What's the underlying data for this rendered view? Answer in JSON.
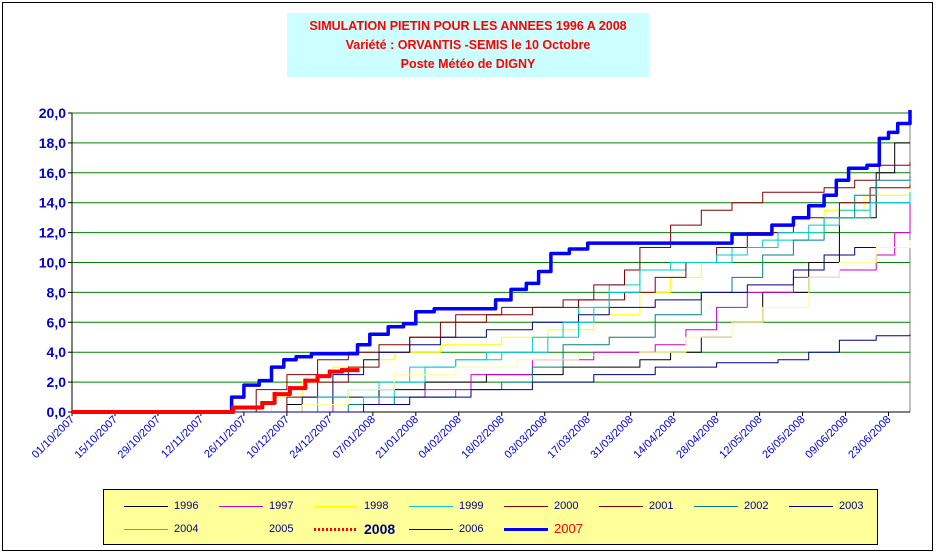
{
  "title_lines": [
    "SIMULATION PIETIN POUR LES ANNEES 1996 A 2008",
    "Variété : ORVANTIS   -SEMIS le 10 Octobre",
    "Poste Météo de DIGNY"
  ],
  "chart_data": {
    "type": "line",
    "title": "SIMULATION PIETIN POUR LES ANNEES 1996 A 2008",
    "ylim": [
      0,
      20
    ],
    "yticks": [
      "0,0",
      "2,0",
      "4,0",
      "6,0",
      "8,0",
      "10,0",
      "12,0",
      "14,0",
      "16,0",
      "18,0",
      "20,0"
    ],
    "xticks": [
      "01/10/2007",
      "15/10/2007",
      "29/10/2007",
      "12/11/2007",
      "26/11/2007",
      "10/12/2007",
      "24/12/2007",
      "07/01/2008",
      "21/01/2008",
      "04/02/2008",
      "18/02/2008",
      "03/03/2008",
      "17/03/2008",
      "31/03/2008",
      "14/04/2008",
      "28/04/2008",
      "12/05/2008",
      "26/05/2008",
      "09/06/2008",
      "23/06/2008"
    ],
    "x_day_start": 0,
    "x_day_end": 273,
    "grid": "horizontal",
    "legend_position": "bottom",
    "series": [
      {
        "name": "1996",
        "color": "#000000",
        "width": 1,
        "points": [
          [
            0,
            0
          ],
          [
            60,
            0
          ],
          [
            70,
            0.5
          ],
          [
            85,
            1
          ],
          [
            100,
            1.5
          ],
          [
            115,
            2
          ],
          [
            135,
            2.5
          ],
          [
            160,
            3
          ],
          [
            185,
            3.5
          ],
          [
            195,
            4
          ],
          [
            205,
            5
          ],
          [
            215,
            6
          ],
          [
            225,
            8
          ],
          [
            240,
            10
          ],
          [
            250,
            13
          ],
          [
            262,
            16
          ],
          [
            268,
            18
          ],
          [
            273,
            18
          ]
        ]
      },
      {
        "name": "1997",
        "color": "#cc00cc",
        "width": 1,
        "points": [
          [
            0,
            0
          ],
          [
            70,
            0
          ],
          [
            85,
            0.5
          ],
          [
            100,
            1
          ],
          [
            115,
            1.5
          ],
          [
            130,
            2.5
          ],
          [
            150,
            3.5
          ],
          [
            170,
            4
          ],
          [
            190,
            4.5
          ],
          [
            200,
            5.5
          ],
          [
            210,
            7
          ],
          [
            220,
            8
          ],
          [
            235,
            9
          ],
          [
            250,
            9.5
          ],
          [
            262,
            10.5
          ],
          [
            268,
            12
          ],
          [
            273,
            14
          ]
        ]
      },
      {
        "name": "1998",
        "color": "#ffff00",
        "width": 1,
        "points": [
          [
            0,
            0
          ],
          [
            55,
            0
          ],
          [
            65,
            1
          ],
          [
            75,
            2
          ],
          [
            85,
            3
          ],
          [
            95,
            3.5
          ],
          [
            105,
            4
          ],
          [
            120,
            4.5
          ],
          [
            140,
            5
          ],
          [
            155,
            5.5
          ],
          [
            170,
            6.5
          ],
          [
            185,
            8
          ],
          [
            195,
            9
          ],
          [
            205,
            10
          ],
          [
            215,
            11
          ],
          [
            230,
            12
          ],
          [
            245,
            13.5
          ],
          [
            258,
            14.5
          ],
          [
            273,
            15.2
          ]
        ]
      },
      {
        "name": "1999",
        "color": "#00cccc",
        "width": 1,
        "points": [
          [
            0,
            0
          ],
          [
            70,
            0
          ],
          [
            80,
            0.5
          ],
          [
            95,
            1
          ],
          [
            105,
            2
          ],
          [
            115,
            3
          ],
          [
            125,
            3.5
          ],
          [
            140,
            4
          ],
          [
            155,
            5
          ],
          [
            165,
            7
          ],
          [
            175,
            8.5
          ],
          [
            185,
            9.5
          ],
          [
            200,
            10
          ],
          [
            215,
            11
          ],
          [
            225,
            11.5
          ],
          [
            240,
            12.5
          ],
          [
            250,
            13.5
          ],
          [
            260,
            14
          ],
          [
            273,
            14.7
          ]
        ]
      },
      {
        "name": "2000",
        "color": "#800000",
        "width": 1,
        "points": [
          [
            0,
            0
          ],
          [
            60,
            0
          ],
          [
            70,
            1
          ],
          [
            80,
            2
          ],
          [
            90,
            3
          ],
          [
            100,
            4
          ],
          [
            110,
            5
          ],
          [
            120,
            6
          ],
          [
            135,
            6.5
          ],
          [
            150,
            7
          ],
          [
            165,
            7.5
          ],
          [
            180,
            8
          ],
          [
            190,
            9
          ],
          [
            200,
            10
          ],
          [
            210,
            11
          ],
          [
            220,
            12
          ],
          [
            235,
            13
          ],
          [
            250,
            14
          ],
          [
            260,
            15
          ],
          [
            273,
            15.2
          ]
        ]
      },
      {
        "name": "2001",
        "color": "#800000",
        "width": 1,
        "points": [
          [
            0,
            0
          ],
          [
            50,
            0
          ],
          [
            60,
            1.5
          ],
          [
            70,
            2.5
          ],
          [
            80,
            3.5
          ],
          [
            90,
            4
          ],
          [
            100,
            4.5
          ],
          [
            110,
            5
          ],
          [
            125,
            6.5
          ],
          [
            140,
            7
          ],
          [
            160,
            7.5
          ],
          [
            170,
            8.5
          ],
          [
            180,
            9.5
          ],
          [
            185,
            11
          ],
          [
            195,
            12.5
          ],
          [
            205,
            13.5
          ],
          [
            215,
            14
          ],
          [
            225,
            14.7
          ],
          [
            245,
            15
          ],
          [
            255,
            15.5
          ],
          [
            263,
            16.5
          ],
          [
            273,
            16.7
          ]
        ]
      },
      {
        "name": "2002",
        "color": "#008080",
        "width": 1,
        "points": [
          [
            0,
            0
          ],
          [
            75,
            0
          ],
          [
            90,
            0.5
          ],
          [
            105,
            1
          ],
          [
            125,
            1.5
          ],
          [
            140,
            2
          ],
          [
            150,
            3
          ],
          [
            160,
            4.5
          ],
          [
            175,
            5
          ],
          [
            190,
            6.5
          ],
          [
            205,
            8
          ],
          [
            215,
            9
          ],
          [
            225,
            10.5
          ],
          [
            235,
            11.5
          ],
          [
            245,
            13
          ],
          [
            255,
            14.5
          ],
          [
            262,
            15.5
          ],
          [
            273,
            15.8
          ]
        ]
      },
      {
        "name": "2003",
        "color": "#000080",
        "width": 1,
        "points": [
          [
            0,
            0
          ],
          [
            65,
            0
          ],
          [
            75,
            1
          ],
          [
            85,
            2.5
          ],
          [
            95,
            3.5
          ],
          [
            100,
            4
          ],
          [
            110,
            4.5
          ],
          [
            120,
            5
          ],
          [
            135,
            5.5
          ],
          [
            150,
            6
          ],
          [
            165,
            6.5
          ],
          [
            175,
            7
          ],
          [
            190,
            7.5
          ],
          [
            205,
            8
          ],
          [
            220,
            8.5
          ],
          [
            235,
            9.5
          ],
          [
            245,
            10.5
          ],
          [
            255,
            11
          ],
          [
            273,
            11.3
          ]
        ]
      },
      {
        "name": "2004",
        "color": "#00cccc",
        "width": 1,
        "points": [
          [
            0,
            0
          ],
          [
            70,
            0
          ],
          [
            80,
            1
          ],
          [
            90,
            1.5
          ],
          [
            100,
            2
          ],
          [
            110,
            3
          ],
          [
            125,
            3.5
          ],
          [
            135,
            4
          ],
          [
            150,
            5
          ],
          [
            160,
            6
          ],
          [
            170,
            7
          ],
          [
            175,
            8
          ],
          [
            185,
            9.5
          ],
          [
            195,
            10
          ],
          [
            210,
            10.5
          ],
          [
            220,
            11
          ],
          [
            230,
            12
          ],
          [
            245,
            13
          ],
          [
            260,
            14
          ],
          [
            273,
            14.7
          ]
        ]
      },
      {
        "name": "2005",
        "color": "#ffff99",
        "width": 1,
        "points": [
          [
            0,
            0
          ],
          [
            65,
            0
          ],
          [
            75,
            0.5
          ],
          [
            90,
            1.5
          ],
          [
            105,
            2.5
          ],
          [
            125,
            3
          ],
          [
            145,
            3.5
          ],
          [
            165,
            3.8
          ],
          [
            185,
            4
          ],
          [
            200,
            5
          ],
          [
            215,
            6
          ],
          [
            225,
            7
          ],
          [
            240,
            9
          ],
          [
            250,
            10
          ],
          [
            262,
            11
          ],
          [
            273,
            11.5
          ]
        ]
      },
      {
        "name": "2008",
        "color": "#ff0000",
        "width": 4,
        "marker": "square",
        "points": [
          [
            0,
            0
          ],
          [
            52,
            0
          ],
          [
            52.5,
            0.3
          ],
          [
            57,
            0.3
          ],
          [
            62,
            0.6
          ],
          [
            66,
            1.2
          ],
          [
            71,
            1.6
          ],
          [
            76,
            2.1
          ],
          [
            80,
            2.4
          ],
          [
            84,
            2.7
          ],
          [
            88,
            2.8
          ],
          [
            93,
            2.8
          ]
        ]
      },
      {
        "name": "2006",
        "color": "#000080",
        "width": 1,
        "points": [
          [
            0,
            0
          ],
          [
            85,
            0
          ],
          [
            95,
            0.5
          ],
          [
            110,
            1
          ],
          [
            130,
            1.5
          ],
          [
            150,
            2
          ],
          [
            170,
            2.5
          ],
          [
            190,
            3
          ],
          [
            210,
            3.3
          ],
          [
            230,
            3.5
          ],
          [
            240,
            4
          ],
          [
            250,
            4.8
          ],
          [
            262,
            5.1
          ],
          [
            273,
            5.2
          ]
        ]
      },
      {
        "name": "2007",
        "color": "#0000ff",
        "width": 3.5,
        "points": [
          [
            0,
            0
          ],
          [
            50,
            0
          ],
          [
            52,
            1
          ],
          [
            56,
            1.8
          ],
          [
            61,
            2.1
          ],
          [
            65,
            3
          ],
          [
            69,
            3.5
          ],
          [
            73,
            3.7
          ],
          [
            78,
            3.9
          ],
          [
            90,
            3.9
          ],
          [
            93,
            4.5
          ],
          [
            97,
            5.2
          ],
          [
            103,
            5.7
          ],
          [
            108,
            5.9
          ],
          [
            112,
            6.7
          ],
          [
            118,
            6.9
          ],
          [
            133,
            6.9
          ],
          [
            138,
            7.5
          ],
          [
            143,
            8.2
          ],
          [
            148,
            8.6
          ],
          [
            152,
            9.4
          ],
          [
            156,
            10.6
          ],
          [
            162,
            10.9
          ],
          [
            168,
            11.3
          ],
          [
            210,
            11.3
          ],
          [
            215,
            11.9
          ],
          [
            223,
            11.9
          ],
          [
            228,
            12.5
          ],
          [
            235,
            13
          ],
          [
            240,
            13.8
          ],
          [
            245,
            14.5
          ],
          [
            249,
            15.5
          ],
          [
            253,
            16.3
          ],
          [
            259,
            16.5
          ],
          [
            263,
            18.3
          ],
          [
            266,
            18.7
          ],
          [
            269,
            19.3
          ],
          [
            273,
            20.2
          ]
        ]
      }
    ]
  }
}
